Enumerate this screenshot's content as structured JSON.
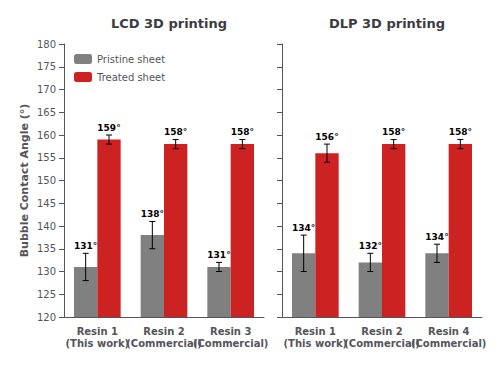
{
  "chart_data": [
    {
      "type": "bar",
      "title": "LCD 3D printing",
      "categories": [
        "Resin 1\n(This work)",
        "Resin 2\n(Commercial)",
        "Resin 3\n(Commercial)"
      ],
      "series": [
        {
          "name": "Pristine sheet",
          "color": "#808080",
          "values": [
            131,
            138,
            131
          ],
          "errors": [
            3,
            3,
            1
          ],
          "value_labels": [
            "131°",
            "138°",
            "131°"
          ]
        },
        {
          "name": "Treated sheet",
          "color": "#cc2222",
          "values": [
            159,
            158,
            158
          ],
          "errors": [
            1,
            1,
            1
          ],
          "value_labels": [
            "159°",
            "158°",
            "158°"
          ]
        }
      ],
      "ylabel": "Bubble Contact Angle (°)",
      "ylim": [
        120,
        180
      ],
      "yticks": [
        120,
        125,
        130,
        135,
        140,
        145,
        150,
        155,
        160,
        165,
        170,
        175,
        180
      ],
      "grid": false,
      "legend": "upper left",
      "data_labels": true
    },
    {
      "type": "bar",
      "title": "DLP 3D printing",
      "categories": [
        "Resin 1\n(This work)",
        "Resin 2\n(Commercial)",
        "Resin 4\n(Commercial)"
      ],
      "series": [
        {
          "name": "Pristine sheet",
          "color": "#808080",
          "values": [
            134,
            132,
            134
          ],
          "errors": [
            4,
            2,
            2
          ],
          "value_labels": [
            "134°",
            "132°",
            "134°"
          ]
        },
        {
          "name": "Treated sheet",
          "color": "#cc2222",
          "values": [
            156,
            158,
            158
          ],
          "errors": [
            2,
            1,
            1
          ],
          "value_labels": [
            "156°",
            "158°",
            "158°"
          ]
        }
      ],
      "ylim": [
        120,
        180
      ],
      "yticks": [
        120,
        125,
        130,
        135,
        140,
        145,
        150,
        155,
        160,
        165,
        170,
        175,
        180
      ],
      "grid": false,
      "tick_labels": "x",
      "data_labels": true
    }
  ]
}
